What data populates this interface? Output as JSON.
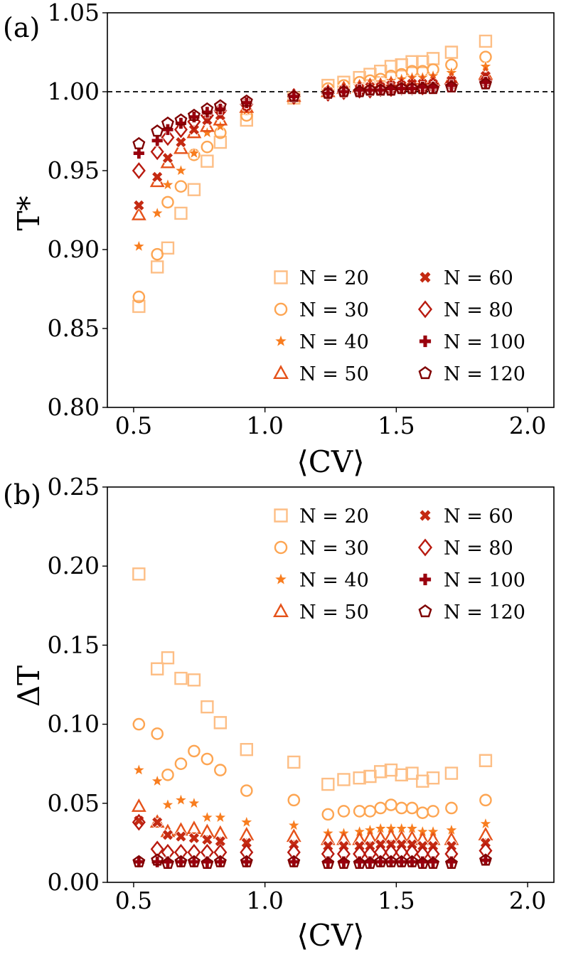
{
  "series_styles": [
    {
      "name": "N = 20",
      "marker": "square",
      "color": "#fdbe85"
    },
    {
      "name": "N = 30",
      "marker": "circle",
      "color": "#fda552"
    },
    {
      "name": "N = 40",
      "marker": "star",
      "color": "#f87d1f"
    },
    {
      "name": "N = 50",
      "marker": "triangle",
      "color": "#e5521a"
    },
    {
      "name": "N = 60",
      "marker": "x-cross",
      "color": "#c42a12"
    },
    {
      "name": "N = 80",
      "marker": "diamond",
      "color": "#b81a0f"
    },
    {
      "name": "N = 100",
      "marker": "plus",
      "color": "#99000d"
    },
    {
      "name": "N = 120",
      "marker": "pentagon",
      "color": "#7f0000"
    }
  ],
  "chart_data": [
    {
      "panel_label": "(a)",
      "type": "scatter",
      "xlabel": "⟨CV⟩",
      "ylabel": "T*",
      "xlim": [
        0.4,
        2.1
      ],
      "ylim": [
        0.8,
        1.05
      ],
      "xticks": [
        "0.5",
        "1.0",
        "1.5",
        "2.0"
      ],
      "yticks": [
        "0.80",
        "0.85",
        "0.90",
        "0.95",
        "1.00",
        "1.05"
      ],
      "reference_line": {
        "y": 1.0,
        "style": "dashed"
      },
      "legend": {
        "placement": "lower-right",
        "columns": 2
      },
      "x": [
        0.52,
        0.59,
        0.63,
        0.68,
        0.73,
        0.78,
        0.83,
        0.93,
        1.11,
        1.24,
        1.3,
        1.36,
        1.4,
        1.44,
        1.48,
        1.52,
        1.56,
        1.6,
        1.64,
        1.71,
        1.84
      ],
      "series": [
        {
          "name": "N = 20",
          "values": [
            0.864,
            0.889,
            0.901,
            0.923,
            0.938,
            0.956,
            0.968,
            0.982,
            0.996,
            1.004,
            1.006,
            1.009,
            1.011,
            1.013,
            1.016,
            1.017,
            1.019,
            1.019,
            1.021,
            1.025,
            1.032
          ]
        },
        {
          "name": "N = 30",
          "values": [
            0.87,
            0.897,
            0.93,
            0.94,
            0.96,
            0.965,
            0.974,
            0.985,
            0.997,
            1.002,
            1.004,
            1.006,
            1.007,
            1.008,
            1.01,
            1.011,
            1.013,
            1.013,
            1.014,
            1.017,
            1.022
          ]
        },
        {
          "name": "N = 40",
          "values": [
            0.902,
            0.923,
            0.941,
            0.95,
            0.961,
            0.974,
            0.978,
            0.988,
            0.997,
            1.001,
            1.003,
            1.004,
            1.005,
            1.006,
            1.007,
            1.008,
            1.009,
            1.009,
            1.01,
            1.012,
            1.016
          ]
        },
        {
          "name": "N = 50",
          "values": [
            0.922,
            0.943,
            0.955,
            0.964,
            0.974,
            0.978,
            0.982,
            0.99,
            0.997,
            1.0,
            1.002,
            1.003,
            1.004,
            1.004,
            1.005,
            1.005,
            1.006,
            1.006,
            1.007,
            1.008,
            1.011
          ]
        },
        {
          "name": "N = 60",
          "values": [
            0.928,
            0.946,
            0.958,
            0.968,
            0.976,
            0.982,
            0.985,
            0.991,
            0.997,
            1.0,
            1.001,
            1.002,
            1.003,
            1.003,
            1.004,
            1.004,
            1.005,
            1.005,
            1.005,
            1.007,
            1.01
          ]
        },
        {
          "name": "N = 80",
          "values": [
            0.95,
            0.962,
            0.971,
            0.976,
            0.981,
            0.985,
            0.988,
            0.992,
            0.997,
            0.999,
            1.0,
            1.001,
            1.001,
            1.002,
            1.002,
            1.003,
            1.003,
            1.003,
            1.004,
            1.005,
            1.007
          ]
        },
        {
          "name": "N = 100",
          "values": [
            0.961,
            0.969,
            0.976,
            0.98,
            0.984,
            0.987,
            0.989,
            0.993,
            0.997,
            0.999,
            1.0,
            1.001,
            1.001,
            1.001,
            1.002,
            1.002,
            1.002,
            1.003,
            1.003,
            1.004,
            1.006
          ]
        },
        {
          "name": "N = 120",
          "values": [
            0.967,
            0.975,
            0.98,
            0.982,
            0.985,
            0.989,
            0.991,
            0.994,
            0.997,
            0.999,
            1.0,
            1.0,
            1.001,
            1.001,
            1.001,
            1.002,
            1.002,
            1.002,
            1.002,
            1.003,
            1.005
          ]
        }
      ]
    },
    {
      "panel_label": "(b)",
      "type": "scatter",
      "xlabel": "⟨CV⟩",
      "ylabel": "ΔT",
      "xlim": [
        0.4,
        2.1
      ],
      "ylim": [
        0.0,
        0.25
      ],
      "xticks": [
        "0.5",
        "1.0",
        "1.5",
        "2.0"
      ],
      "yticks": [
        "0.00",
        "0.05",
        "0.10",
        "0.15",
        "0.20",
        "0.25"
      ],
      "legend": {
        "placement": "top-right",
        "columns": 2
      },
      "x": [
        0.52,
        0.59,
        0.63,
        0.68,
        0.73,
        0.78,
        0.83,
        0.93,
        1.11,
        1.24,
        1.3,
        1.36,
        1.4,
        1.44,
        1.48,
        1.52,
        1.56,
        1.6,
        1.64,
        1.71,
        1.84
      ],
      "series": [
        {
          "name": "N = 20",
          "values": [
            0.195,
            0.135,
            0.142,
            0.129,
            0.128,
            0.111,
            0.101,
            0.084,
            0.076,
            0.062,
            0.065,
            0.066,
            0.067,
            0.07,
            0.071,
            0.068,
            0.069,
            0.064,
            0.066,
            0.069,
            0.077
          ]
        },
        {
          "name": "N = 30",
          "values": [
            0.1,
            0.094,
            0.068,
            0.075,
            0.083,
            0.078,
            0.071,
            0.058,
            0.052,
            0.043,
            0.045,
            0.045,
            0.045,
            0.047,
            0.049,
            0.047,
            0.047,
            0.044,
            0.045,
            0.047,
            0.052
          ]
        },
        {
          "name": "N = 40",
          "values": [
            0.071,
            0.064,
            0.049,
            0.052,
            0.05,
            0.041,
            0.041,
            0.038,
            0.036,
            0.031,
            0.031,
            0.032,
            0.033,
            0.034,
            0.034,
            0.034,
            0.034,
            0.032,
            0.032,
            0.033,
            0.037
          ]
        },
        {
          "name": "N = 50",
          "values": [
            0.048,
            0.038,
            0.032,
            0.033,
            0.034,
            0.032,
            0.031,
            0.03,
            0.029,
            0.027,
            0.027,
            0.027,
            0.028,
            0.028,
            0.029,
            0.028,
            0.028,
            0.027,
            0.027,
            0.027,
            0.03
          ]
        },
        {
          "name": "N = 60",
          "values": [
            0.039,
            0.038,
            0.03,
            0.029,
            0.028,
            0.027,
            0.026,
            0.025,
            0.024,
            0.023,
            0.023,
            0.023,
            0.023,
            0.024,
            0.024,
            0.024,
            0.024,
            0.023,
            0.023,
            0.023,
            0.025
          ]
        },
        {
          "name": "N = 80",
          "values": [
            0.038,
            0.021,
            0.019,
            0.019,
            0.019,
            0.019,
            0.019,
            0.019,
            0.019,
            0.018,
            0.018,
            0.018,
            0.018,
            0.019,
            0.019,
            0.019,
            0.019,
            0.018,
            0.018,
            0.018,
            0.02
          ]
        },
        {
          "name": "N = 100",
          "values": [
            0.013,
            0.013,
            0.013,
            0.013,
            0.013,
            0.013,
            0.013,
            0.013,
            0.013,
            0.013,
            0.013,
            0.013,
            0.013,
            0.013,
            0.013,
            0.013,
            0.013,
            0.013,
            0.013,
            0.013,
            0.014
          ]
        },
        {
          "name": "N = 120",
          "values": [
            0.013,
            0.014,
            0.012,
            0.013,
            0.013,
            0.012,
            0.013,
            0.013,
            0.013,
            0.012,
            0.012,
            0.012,
            0.012,
            0.013,
            0.013,
            0.013,
            0.013,
            0.012,
            0.012,
            0.012,
            0.014
          ]
        }
      ]
    }
  ]
}
